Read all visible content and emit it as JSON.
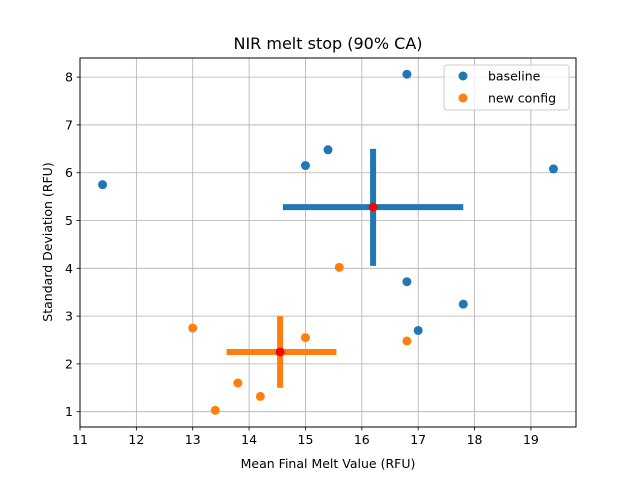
{
  "chart_data": {
    "type": "scatter",
    "title": "NIR melt stop (90% CA)",
    "xlabel": "Mean Final Melt Value (RFU)",
    "ylabel": "Standard Deviation (RFU)",
    "xlim": [
      11,
      19.8
    ],
    "ylim": [
      0.68,
      8.4
    ],
    "xticks": [
      "11",
      "12",
      "13",
      "14",
      "15",
      "16",
      "17",
      "18",
      "19"
    ],
    "yticks": [
      "1",
      "2",
      "3",
      "4",
      "5",
      "6",
      "7",
      "8"
    ],
    "grid": true,
    "legend_position": "top-right",
    "series": [
      {
        "name": "baseline",
        "color": "#1f77b4",
        "points": [
          {
            "x": 11.4,
            "y": 5.75
          },
          {
            "x": 15.0,
            "y": 6.15
          },
          {
            "x": 15.4,
            "y": 6.48
          },
          {
            "x": 16.8,
            "y": 8.06
          },
          {
            "x": 19.4,
            "y": 6.08
          },
          {
            "x": 16.8,
            "y": 3.72
          },
          {
            "x": 17.8,
            "y": 3.25
          },
          {
            "x": 17.0,
            "y": 2.7
          }
        ],
        "mean": {
          "x": 16.2,
          "y": 5.28
        },
        "error_x": [
          14.6,
          17.8
        ],
        "error_y": [
          4.05,
          6.5
        ]
      },
      {
        "name": "new config",
        "color": "#ff7f0e",
        "points": [
          {
            "x": 13.0,
            "y": 2.75
          },
          {
            "x": 13.8,
            "y": 1.6
          },
          {
            "x": 13.4,
            "y": 1.03
          },
          {
            "x": 14.2,
            "y": 1.32
          },
          {
            "x": 15.0,
            "y": 2.55
          },
          {
            "x": 15.6,
            "y": 4.02
          },
          {
            "x": 16.8,
            "y": 2.48
          }
        ],
        "mean": {
          "x": 14.55,
          "y": 2.25
        },
        "error_x": [
          13.6,
          15.55
        ],
        "error_y": [
          1.5,
          3.0
        ]
      }
    ],
    "mean_marker_color": "#ff0000"
  }
}
